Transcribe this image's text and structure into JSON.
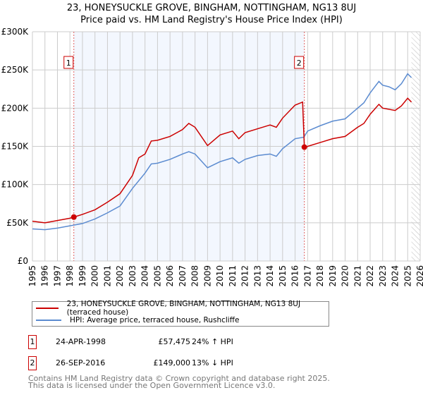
{
  "chart_data": {
    "type": "line",
    "title": "23, HONEYSUCKLE GROVE, BINGHAM, NOTTINGHAM, NG13 8UJ",
    "subtitle": "Price paid vs. HM Land Registry's House Price Index (HPI)",
    "xlim": [
      1995,
      2026
    ],
    "ylim": [
      0,
      300000
    ],
    "x_ticks": [
      "1995",
      "1996",
      "1997",
      "1998",
      "1999",
      "2000",
      "2001",
      "2002",
      "2003",
      "2004",
      "2005",
      "2006",
      "2007",
      "2008",
      "2009",
      "2010",
      "2011",
      "2012",
      "2013",
      "2014",
      "2015",
      "2016",
      "2017",
      "2018",
      "2019",
      "2020",
      "2021",
      "2022",
      "2023",
      "2024",
      "2025",
      "2026"
    ],
    "y_ticks": [
      {
        "v": 0,
        "label": "£0"
      },
      {
        "v": 50000,
        "label": "£50K"
      },
      {
        "v": 100000,
        "label": "£100K"
      },
      {
        "v": 150000,
        "label": "£150K"
      },
      {
        "v": 200000,
        "label": "£200K"
      },
      {
        "v": 250000,
        "label": "£250K"
      },
      {
        "v": 300000,
        "label": "£300K"
      }
    ],
    "grid": true,
    "shaded_range": [
      1998.31,
      2016.74
    ],
    "hatched_from": 2025.3,
    "series": [
      {
        "name": "23, HONEYSUCKLE GROVE, BINGHAM, NOTTINGHAM, NG13 8UJ (terraced house)",
        "color": "#cc0000",
        "x": [
          1995,
          1996,
          1997,
          1998,
          1998.31,
          1999,
          2000,
          2001,
          2002,
          2003,
          2003.5,
          2004,
          2004.5,
          2005,
          2006,
          2007,
          2007.5,
          2008,
          2009,
          2010,
          2011,
          2011.5,
          2012,
          2013,
          2014,
          2014.5,
          2015,
          2016,
          2016.6,
          2016.74,
          2017,
          2018,
          2019,
          2020,
          2021,
          2021.5,
          2022,
          2022.7,
          2023,
          2024,
          2024.5,
          2025,
          2025.3
        ],
        "y": [
          52000,
          50000,
          53000,
          56000,
          57475,
          61000,
          67000,
          77000,
          88000,
          112000,
          135000,
          140000,
          157000,
          158000,
          163000,
          172000,
          180000,
          175000,
          151000,
          165000,
          170000,
          160000,
          168000,
          173000,
          178000,
          175000,
          187000,
          204000,
          208000,
          149000,
          150000,
          155000,
          160000,
          163000,
          175000,
          180000,
          192000,
          205000,
          200000,
          197000,
          203000,
          213000,
          208000
        ]
      },
      {
        "name": "HPI: Average price, terraced house, Rushcliffe",
        "color": "#5b8bd0",
        "x": [
          1995,
          1996,
          1997,
          1998,
          1999,
          2000,
          2001,
          2002,
          2003,
          2004,
          2004.5,
          2005,
          2006,
          2007,
          2007.5,
          2008,
          2009,
          2010,
          2011,
          2011.5,
          2012,
          2013,
          2014,
          2014.5,
          2015,
          2016,
          2016.7,
          2017,
          2018,
          2019,
          2020,
          2021,
          2021.5,
          2022,
          2022.7,
          2023,
          2023.5,
          2024,
          2024.5,
          2025,
          2025.3
        ],
        "y": [
          42000,
          41000,
          43000,
          46000,
          49000,
          55000,
          63000,
          72000,
          95000,
          115000,
          127000,
          128000,
          133000,
          140000,
          143000,
          140000,
          122000,
          130000,
          135000,
          128000,
          133000,
          138000,
          140000,
          137000,
          147000,
          160000,
          162000,
          170000,
          177000,
          183000,
          186000,
          200000,
          207000,
          220000,
          235000,
          230000,
          228000,
          224000,
          232000,
          245000,
          240000
        ]
      }
    ],
    "sales": [
      {
        "n": "1",
        "x": 1998.31,
        "y": 57475
      },
      {
        "n": "2",
        "x": 2016.74,
        "y": 149000
      }
    ]
  },
  "legend": {
    "red": "23, HONEYSUCKLE GROVE, BINGHAM, NOTTINGHAM, NG13 8UJ (terraced house)",
    "blue": "HPI: Average price, terraced house, Rushcliffe"
  },
  "table": [
    {
      "n": "1",
      "date": "24-APR-1998",
      "price": "£57,475",
      "hpi": "24% ↑ HPI"
    },
    {
      "n": "2",
      "date": "26-SEP-2016",
      "price": "£149,000",
      "hpi": "13% ↓ HPI"
    }
  ],
  "footer": [
    "Contains HM Land Registry data © Crown copyright and database right 2025.",
    "This data is licensed under the Open Government Licence v3.0."
  ]
}
